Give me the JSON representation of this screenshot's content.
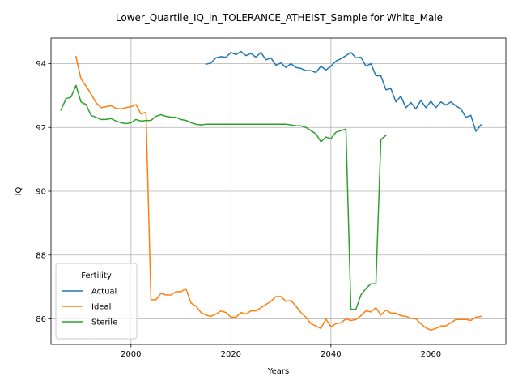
{
  "chart_data": {
    "type": "line",
    "title": "Lower_Quartile_IQ_in_TOLERANCE_ATHEIST_Sample for White_Male",
    "xlabel": "Years",
    "ylabel": "IQ",
    "xlim": [
      1984,
      2075
    ],
    "ylim": [
      85.2,
      94.8
    ],
    "x_ticks": [
      2000,
      2020,
      2040,
      2060
    ],
    "y_ticks": [
      86,
      88,
      90,
      92,
      94
    ],
    "grid": true,
    "legend": {
      "title": "Fertility",
      "position": "lower-left"
    },
    "series": [
      {
        "name": "Actual",
        "color": "#1f77b4",
        "x": [
          2015,
          2016,
          2017,
          2018,
          2019,
          2020,
          2021,
          2022,
          2023,
          2024,
          2025,
          2026,
          2027,
          2028,
          2029,
          2030,
          2031,
          2032,
          2033,
          2034,
          2035,
          2036,
          2037,
          2038,
          2039,
          2040,
          2041,
          2042,
          2043,
          2044,
          2045,
          2046,
          2047,
          2048,
          2049,
          2050,
          2051,
          2052,
          2053,
          2054,
          2055,
          2056,
          2057,
          2058,
          2059,
          2060,
          2061,
          2062,
          2063,
          2064,
          2065,
          2066,
          2067,
          2068,
          2069,
          2070
        ],
        "y": [
          93.98,
          94.02,
          94.18,
          94.22,
          94.2,
          94.35,
          94.28,
          94.38,
          94.25,
          94.32,
          94.2,
          94.35,
          94.12,
          94.18,
          93.95,
          94.02,
          93.88,
          94.0,
          93.88,
          93.85,
          93.78,
          93.78,
          93.72,
          93.92,
          93.8,
          93.92,
          94.08,
          94.15,
          94.25,
          94.35,
          94.18,
          94.2,
          93.92,
          94.0,
          93.62,
          93.62,
          93.18,
          93.22,
          92.8,
          92.98,
          92.62,
          92.78,
          92.58,
          92.85,
          92.62,
          92.82,
          92.62,
          92.8,
          92.7,
          92.8,
          92.68,
          92.58,
          92.32,
          92.38,
          91.88,
          92.08
        ]
      },
      {
        "name": "Ideal",
        "color": "#ff7f0e",
        "x": [
          1989,
          1990,
          1991,
          1992,
          1993,
          1994,
          1995,
          1996,
          1997,
          1998,
          1999,
          2000,
          2001,
          2002,
          2003,
          2004,
          2005,
          2006,
          2007,
          2008,
          2009,
          2010,
          2011,
          2012,
          2013,
          2014,
          2015,
          2016,
          2017,
          2018,
          2019,
          2020,
          2021,
          2022,
          2023,
          2024,
          2025,
          2026,
          2027,
          2028,
          2029,
          2030,
          2031,
          2032,
          2033,
          2034,
          2035,
          2036,
          2037,
          2038,
          2039,
          2040,
          2041,
          2042,
          2043,
          2044,
          2045,
          2046,
          2047,
          2048,
          2049,
          2050,
          2051,
          2052,
          2053,
          2054,
          2055,
          2056,
          2057,
          2058,
          2059,
          2060,
          2061,
          2062,
          2063,
          2064,
          2065,
          2066,
          2067,
          2068,
          2069,
          2070
        ],
        "y": [
          94.22,
          93.52,
          93.3,
          93.05,
          92.78,
          92.62,
          92.65,
          92.68,
          92.6,
          92.58,
          92.62,
          92.65,
          92.72,
          92.42,
          92.48,
          86.6,
          86.6,
          86.8,
          86.75,
          86.75,
          86.85,
          86.85,
          86.95,
          86.5,
          86.4,
          86.2,
          86.12,
          86.08,
          86.15,
          86.25,
          86.2,
          86.05,
          86.05,
          86.2,
          86.15,
          86.25,
          86.25,
          86.35,
          86.45,
          86.55,
          86.7,
          86.7,
          86.55,
          86.58,
          86.4,
          86.2,
          86.05,
          85.85,
          85.78,
          85.7,
          86.0,
          85.75,
          85.85,
          85.88,
          86.0,
          85.95,
          85.98,
          86.1,
          86.25,
          86.22,
          86.35,
          86.12,
          86.28,
          86.18,
          86.18,
          86.1,
          86.08,
          86.02,
          86.0,
          85.85,
          85.72,
          85.65,
          85.7,
          85.78,
          85.78,
          85.88,
          85.98,
          85.98,
          85.98,
          85.95,
          86.05,
          86.08
        ]
      },
      {
        "name": "Sterile",
        "color": "#2ca02c",
        "x": [
          1986,
          1987,
          1988,
          1989,
          1990,
          1991,
          1992,
          1993,
          1994,
          1995,
          1996,
          1997,
          1998,
          1999,
          2000,
          2001,
          2002,
          2003,
          2004,
          2005,
          2006,
          2007,
          2008,
          2009,
          2010,
          2011,
          2012,
          2013,
          2014,
          2015,
          2016,
          2017,
          2018,
          2019,
          2020,
          2021,
          2022,
          2023,
          2024,
          2025,
          2026,
          2027,
          2028,
          2029,
          2030,
          2031,
          2032,
          2033,
          2034,
          2035,
          2036,
          2037,
          2038,
          2039,
          2040,
          2041,
          2042,
          2043,
          2044,
          2045,
          2046,
          2047,
          2048,
          2049,
          2050,
          2051
        ],
        "y": [
          92.55,
          92.9,
          92.95,
          93.32,
          92.8,
          92.72,
          92.38,
          92.32,
          92.25,
          92.25,
          92.28,
          92.2,
          92.15,
          92.12,
          92.15,
          92.25,
          92.2,
          92.22,
          92.22,
          92.35,
          92.4,
          92.35,
          92.32,
          92.32,
          92.25,
          92.22,
          92.15,
          92.1,
          92.08,
          92.1,
          92.1,
          92.1,
          92.1,
          92.1,
          92.1,
          92.1,
          92.1,
          92.1,
          92.1,
          92.1,
          92.1,
          92.1,
          92.1,
          92.1,
          92.1,
          92.1,
          92.08,
          92.05,
          92.05,
          92.0,
          91.9,
          91.8,
          91.55,
          91.7,
          91.65,
          91.85,
          91.9,
          91.95,
          86.3,
          86.3,
          86.75,
          86.95,
          87.1,
          87.1,
          91.62,
          91.75
        ]
      }
    ]
  }
}
